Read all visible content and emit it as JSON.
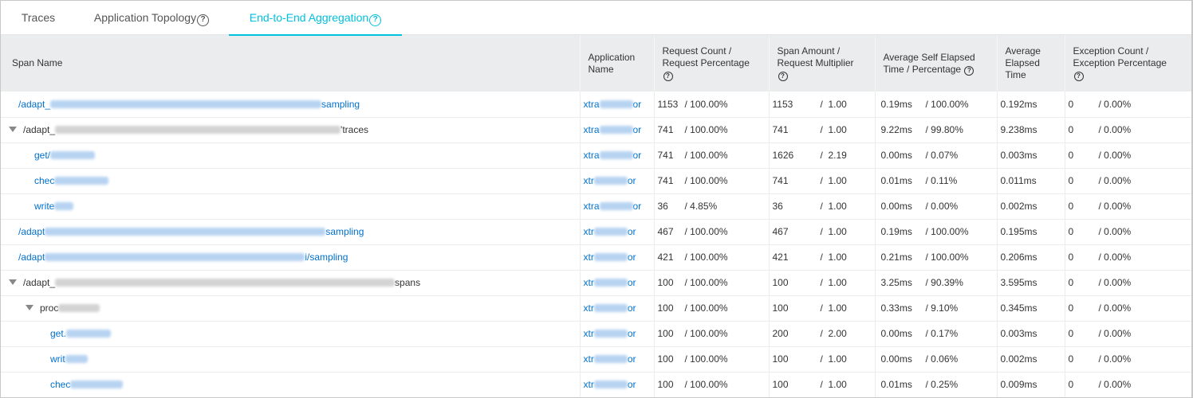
{
  "tabs": [
    {
      "label": "Traces",
      "help": false,
      "active": false
    },
    {
      "label": "Application Topology",
      "help": true,
      "active": false
    },
    {
      "label": "End-to-End Aggregation",
      "help": true,
      "active": true
    }
  ],
  "colors": {
    "accent": "#00c1de",
    "link": "#0070cc",
    "header_bg": "#ebeced"
  },
  "table": {
    "columns": [
      {
        "label": "Span Name",
        "help": false
      },
      {
        "label": "Application Name",
        "help": false
      },
      {
        "label": "Request Count / Request Percentage",
        "help": true
      },
      {
        "label": "Span Amount / Request Multiplier",
        "help": true
      },
      {
        "label": "Average Self Elapsed Time / Percentage",
        "help": true
      },
      {
        "label": "Average Elapsed Time",
        "help": false
      },
      {
        "label": "Exception Count / Exception Percentage",
        "help": true
      }
    ],
    "rows": [
      {
        "span_prefix": "/adapt_",
        "span_suffix": "sampling",
        "level": 0,
        "expandable": false,
        "link": true,
        "blur_w": 340,
        "app_prefix": "xtra",
        "app_suffix": "or",
        "req_count": "1153",
        "req_pct": "/ 100.00%",
        "span_amount": "1153",
        "multiplier": "/  1.00",
        "self_time": "0.19ms",
        "self_pct": "/ 100.00%",
        "avg_time": "0.192ms",
        "exc_count": "0",
        "exc_pct": "/ 0.00%"
      },
      {
        "span_prefix": "/adapt_",
        "span_suffix": "'traces",
        "level": 0,
        "expandable": true,
        "link": false,
        "blur_w": 358,
        "app_prefix": "xtra",
        "app_suffix": "or",
        "req_count": "741",
        "req_pct": "/ 100.00%",
        "span_amount": "741",
        "multiplier": "/  1.00",
        "self_time": "9.22ms",
        "self_pct": "/ 99.80%",
        "avg_time": "9.238ms",
        "exc_count": "0",
        "exc_pct": "/ 0.00%"
      },
      {
        "span_prefix": "get/",
        "span_suffix": "",
        "level": 1,
        "expandable": false,
        "link": true,
        "blur_w": 56,
        "app_prefix": "xtra",
        "app_suffix": "or",
        "req_count": "741",
        "req_pct": "/ 100.00%",
        "span_amount": "1626",
        "multiplier": "/  2.19",
        "self_time": "0.00ms",
        "self_pct": "/ 0.07%",
        "avg_time": "0.003ms",
        "exc_count": "0",
        "exc_pct": "/ 0.00%"
      },
      {
        "span_prefix": "chec",
        "span_suffix": "",
        "level": 1,
        "expandable": false,
        "link": true,
        "blur_w": 68,
        "app_prefix": "xtr",
        "app_suffix": "or",
        "req_count": "741",
        "req_pct": "/ 100.00%",
        "span_amount": "741",
        "multiplier": "/  1.00",
        "self_time": "0.01ms",
        "self_pct": "/ 0.11%",
        "avg_time": "0.011ms",
        "exc_count": "0",
        "exc_pct": "/ 0.00%"
      },
      {
        "span_prefix": "write",
        "span_suffix": "",
        "level": 1,
        "expandable": false,
        "link": true,
        "blur_w": 24,
        "app_prefix": "xtra",
        "app_suffix": "or",
        "req_count": "36",
        "req_pct": "/ 4.85%",
        "span_amount": "36",
        "multiplier": "/  1.00",
        "self_time": "0.00ms",
        "self_pct": "/ 0.00%",
        "avg_time": "0.002ms",
        "exc_count": "0",
        "exc_pct": "/ 0.00%"
      },
      {
        "span_prefix": "/adapt",
        "span_suffix": "sampling",
        "level": 0,
        "expandable": false,
        "link": true,
        "blur_w": 352,
        "app_prefix": "xtr",
        "app_suffix": "or",
        "req_count": "467",
        "req_pct": "/ 100.00%",
        "span_amount": "467",
        "multiplier": "/  1.00",
        "self_time": "0.19ms",
        "self_pct": "/ 100.00%",
        "avg_time": "0.195ms",
        "exc_count": "0",
        "exc_pct": "/ 0.00%"
      },
      {
        "span_prefix": "/adapt",
        "span_suffix": "i/sampling",
        "level": 0,
        "expandable": false,
        "link": true,
        "blur_w": 326,
        "app_prefix": "xtr",
        "app_suffix": "or",
        "req_count": "421",
        "req_pct": "/ 100.00%",
        "span_amount": "421",
        "multiplier": "/  1.00",
        "self_time": "0.21ms",
        "self_pct": "/ 100.00%",
        "avg_time": "0.206ms",
        "exc_count": "0",
        "exc_pct": "/ 0.00%"
      },
      {
        "span_prefix": "/adapt_",
        "span_suffix": "spans",
        "level": 0,
        "expandable": true,
        "link": false,
        "blur_w": 426,
        "app_prefix": "xtr",
        "app_suffix": "or",
        "req_count": "100",
        "req_pct": "/ 100.00%",
        "span_amount": "100",
        "multiplier": "/  1.00",
        "self_time": "3.25ms",
        "self_pct": "/ 90.39%",
        "avg_time": "3.595ms",
        "exc_count": "0",
        "exc_pct": "/ 0.00%"
      },
      {
        "span_prefix": "proc",
        "span_suffix": "",
        "level": 1,
        "expandable": true,
        "link": false,
        "blur_w": 52,
        "app_prefix": "xtr",
        "app_suffix": "or",
        "req_count": "100",
        "req_pct": "/ 100.00%",
        "span_amount": "100",
        "multiplier": "/  1.00",
        "self_time": "0.33ms",
        "self_pct": "/ 9.10%",
        "avg_time": "0.345ms",
        "exc_count": "0",
        "exc_pct": "/ 0.00%"
      },
      {
        "span_prefix": "get.",
        "span_suffix": "",
        "level": 2,
        "expandable": false,
        "link": true,
        "blur_w": 56,
        "app_prefix": "xtr",
        "app_suffix": "or",
        "req_count": "100",
        "req_pct": "/ 100.00%",
        "span_amount": "200",
        "multiplier": "/  2.00",
        "self_time": "0.00ms",
        "self_pct": "/ 0.17%",
        "avg_time": "0.003ms",
        "exc_count": "0",
        "exc_pct": "/ 0.00%"
      },
      {
        "span_prefix": "writ",
        "span_suffix": "",
        "level": 2,
        "expandable": false,
        "link": true,
        "blur_w": 28,
        "app_prefix": "xtr",
        "app_suffix": "or",
        "req_count": "100",
        "req_pct": "/ 100.00%",
        "span_amount": "100",
        "multiplier": "/  1.00",
        "self_time": "0.00ms",
        "self_pct": "/ 0.06%",
        "avg_time": "0.002ms",
        "exc_count": "0",
        "exc_pct": "/ 0.00%"
      },
      {
        "span_prefix": "chec",
        "span_suffix": "",
        "level": 2,
        "expandable": false,
        "link": true,
        "blur_w": 66,
        "app_prefix": "xtr",
        "app_suffix": "or",
        "req_count": "100",
        "req_pct": "/ 100.00%",
        "span_amount": "100",
        "multiplier": "/  1.00",
        "self_time": "0.01ms",
        "self_pct": "/ 0.25%",
        "avg_time": "0.009ms",
        "exc_count": "0",
        "exc_pct": "/ 0.00%"
      }
    ]
  }
}
